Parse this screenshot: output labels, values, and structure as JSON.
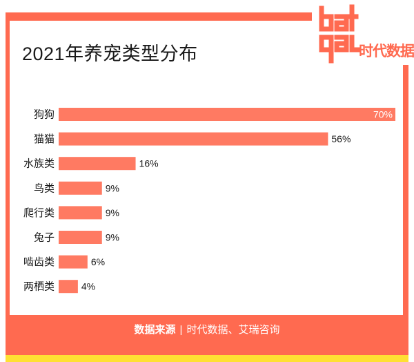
{
  "title": "2021年养宠类型分布",
  "logo": {
    "letters": "data",
    "cn": "时代数据"
  },
  "footer": {
    "lead": "数据来源",
    "sep": "|",
    "sources": "时代数据、艾瑞咨询"
  },
  "colors": {
    "accent": "#ff6a50",
    "accent_light": "#ff7a62",
    "yellow": "#ffe033",
    "text": "#1a1a1a"
  },
  "chart_data": {
    "type": "bar",
    "orientation": "horizontal",
    "categories": [
      "狗狗",
      "猫猫",
      "水族类",
      "鸟类",
      "爬行类",
      "兔子",
      "啮齿类",
      "两栖类"
    ],
    "values": [
      70,
      56,
      16,
      9,
      9,
      9,
      6,
      4
    ],
    "value_labels": [
      "70%",
      "56%",
      "16%",
      "9%",
      "9%",
      "9%",
      "6%",
      "4%"
    ],
    "unit": "%",
    "xlim": [
      0,
      70
    ],
    "grid": false,
    "legend": "none"
  }
}
